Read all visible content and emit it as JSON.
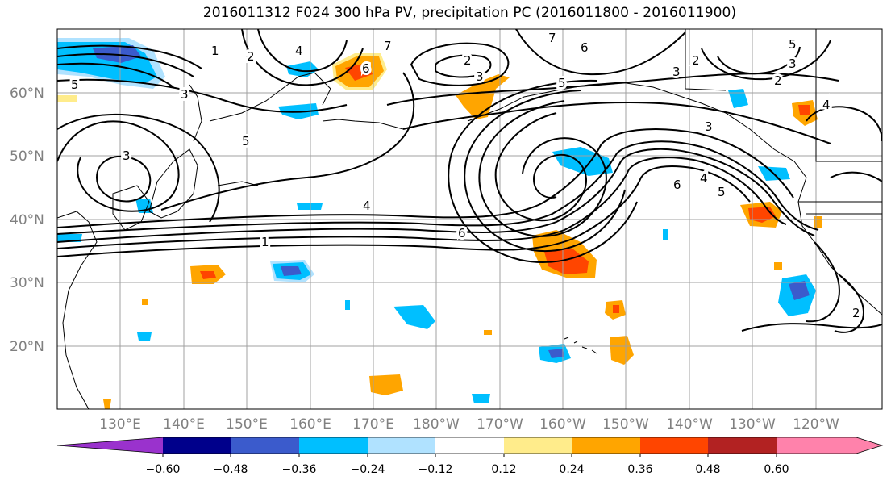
{
  "title": "2016011312 F024 300 hPa PV, precipitation PC (2016011800 - 2016011900)",
  "lat_labels": [
    "60°N",
    "50°N",
    "40°N",
    "30°N",
    "20°N"
  ],
  "lon_labels": [
    "130°E",
    "140°E",
    "150°E",
    "160°E",
    "170°E",
    "180°W",
    "170°W",
    "160°W",
    "150°W",
    "140°W",
    "130°W",
    "120°W"
  ],
  "colorbar": {
    "tick_labels": [
      "−0.60",
      "−0.48",
      "−0.36",
      "−0.24",
      "−0.12",
      "0.12",
      "0.24",
      "0.36",
      "0.48",
      "0.60"
    ],
    "colors": [
      "#9a32cd",
      "#00008b",
      "#3b5bcc",
      "#00bfff",
      "#b0e2ff",
      "#ffffff",
      "#ffec8b",
      "#ffa500",
      "#ff4500",
      "#b22222",
      "#ff82ab"
    ]
  },
  "contour_labels": [
    "1",
    "2",
    "3",
    "4",
    "5",
    "6",
    "7"
  ],
  "shading_colors": {
    "neg_light": "#b0e2ff",
    "neg_mid": "#00bfff",
    "neg_strong": "#3b5bcc",
    "pos_light": "#ffec8b",
    "pos_mid": "#ffa500",
    "pos_strong": "#ff4500"
  }
}
